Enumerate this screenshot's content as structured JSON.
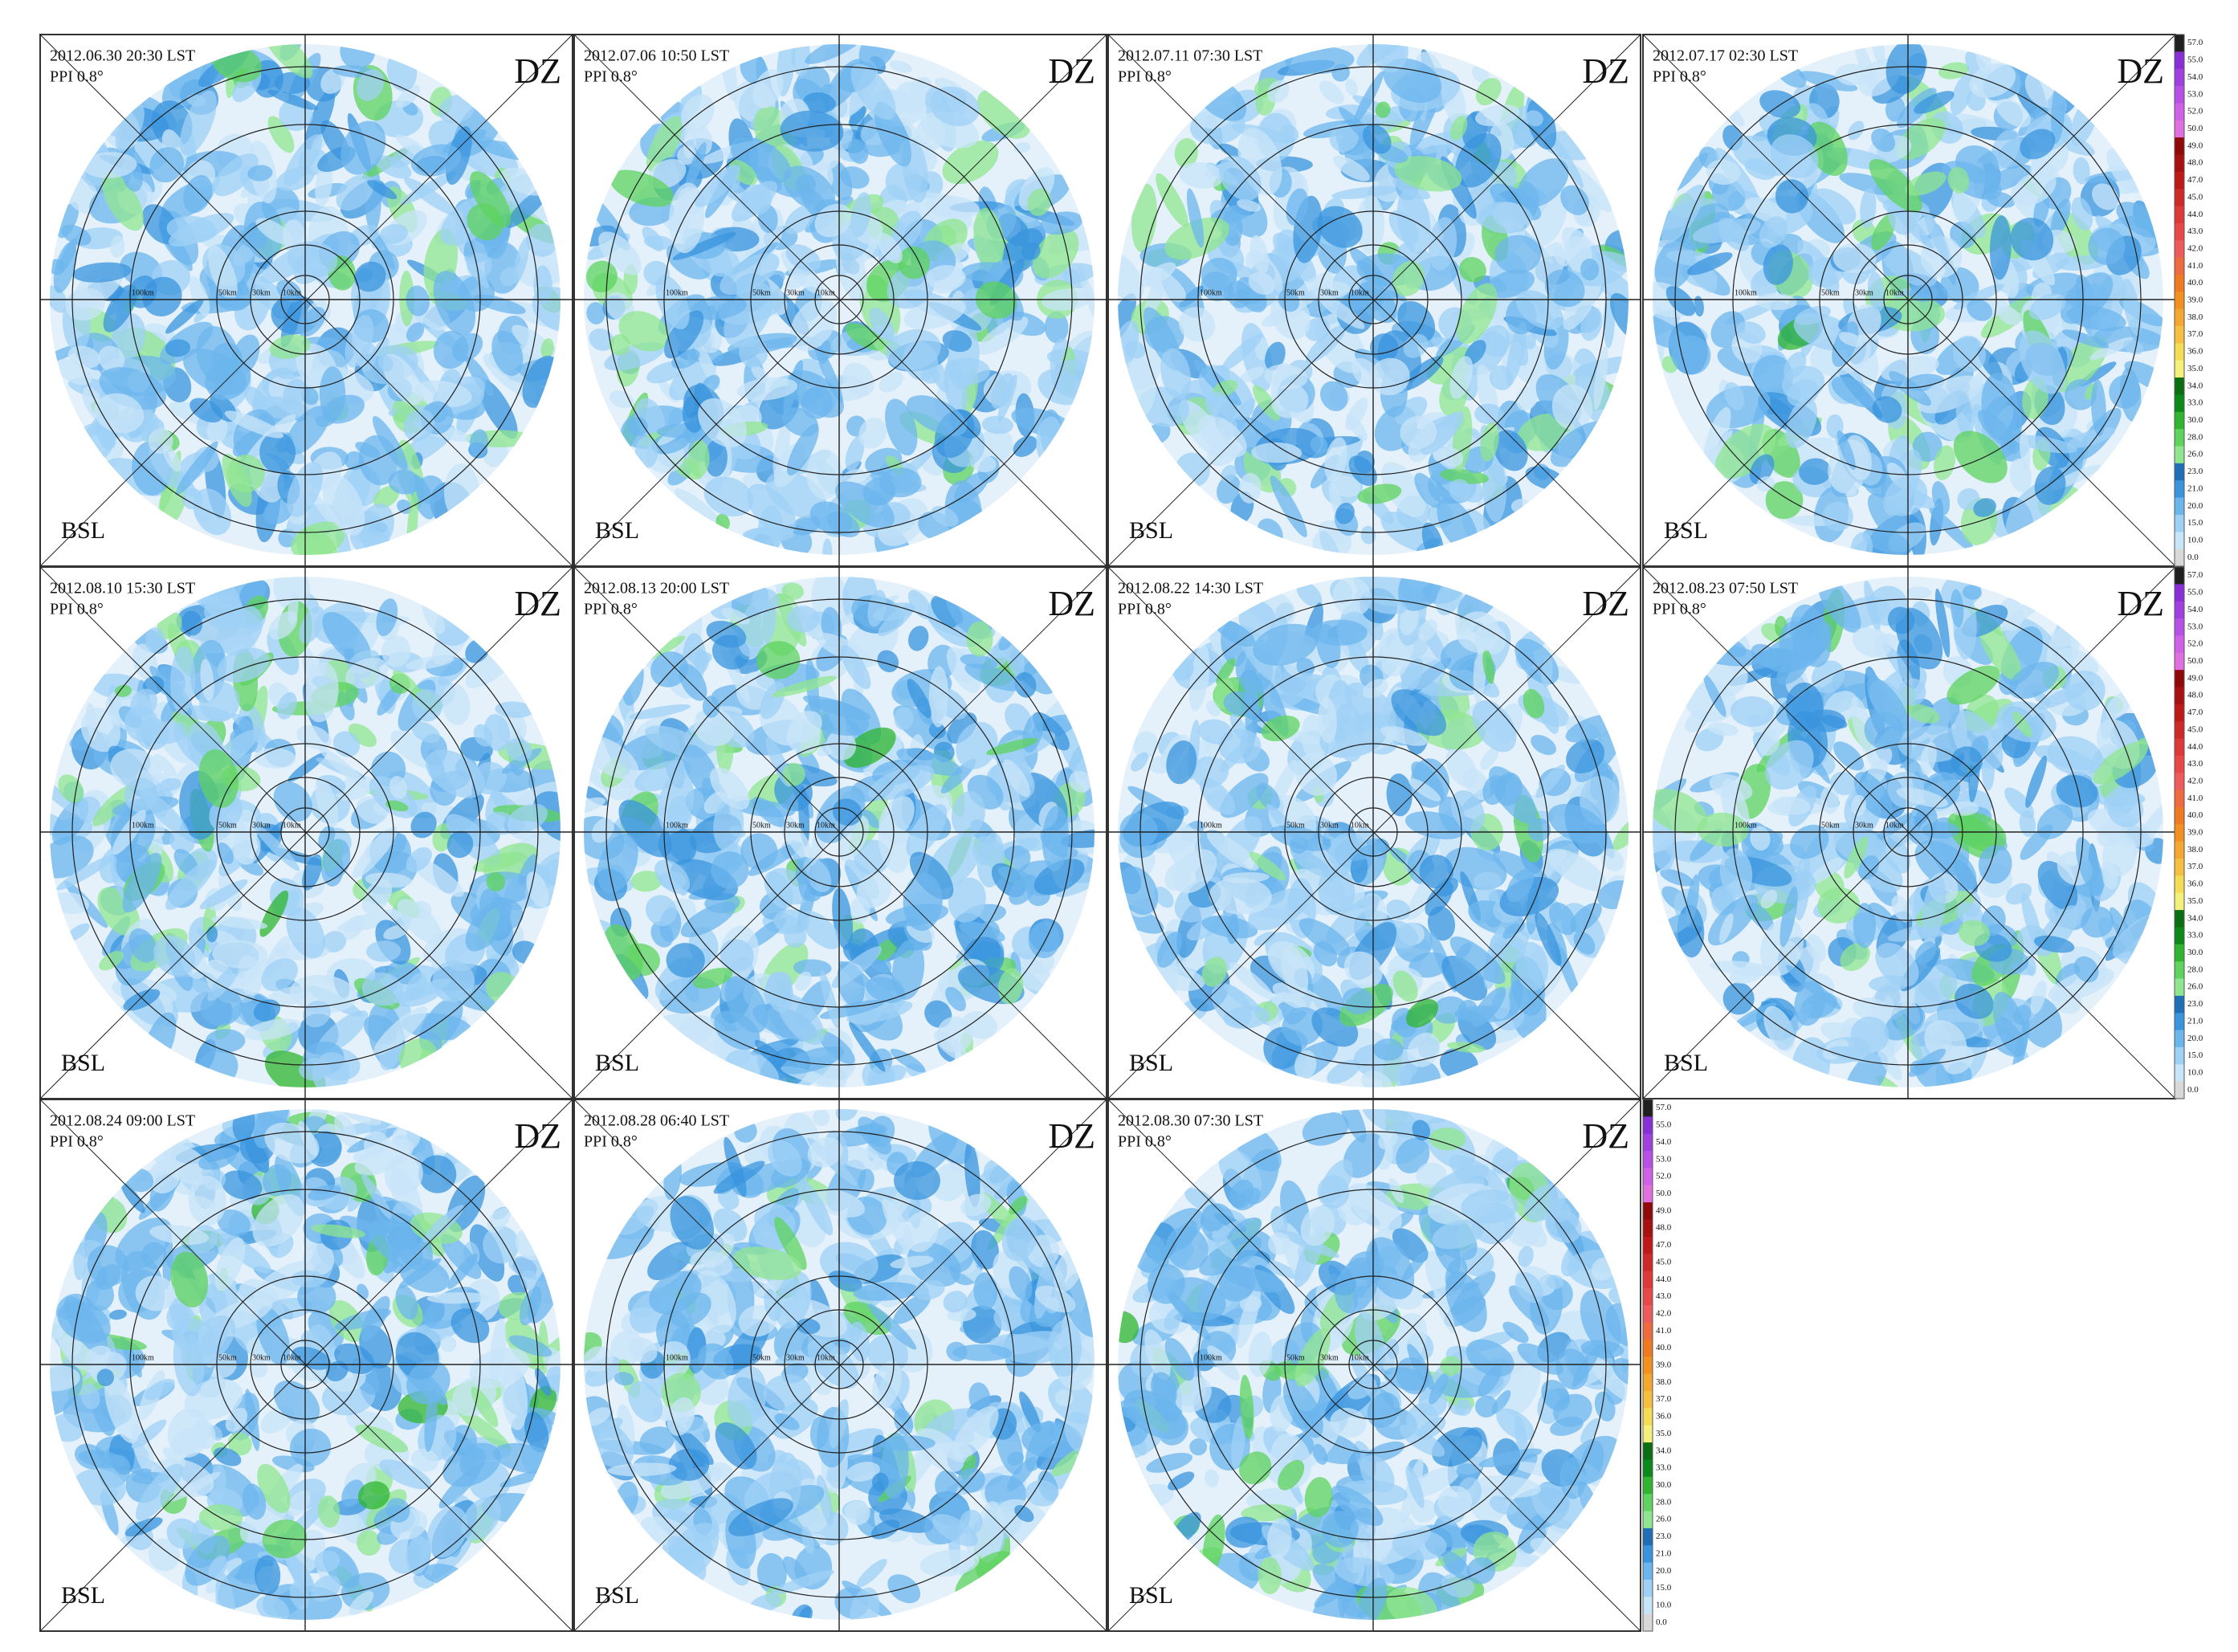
{
  "panels": [
    {
      "timestamp": "2012.06.30 20:30 LST",
      "scan": "PPI 0.8°",
      "field": "DZ",
      "site": "BSL",
      "ranges": [
        "100km",
        "50km",
        "30km",
        "10km"
      ]
    },
    {
      "timestamp": "2012.07.06 10:50 LST",
      "scan": "PPI 0.8°",
      "field": "DZ",
      "site": "BSL",
      "ranges": [
        "100km",
        "50km",
        "30km",
        "10km"
      ]
    },
    {
      "timestamp": "2012.07.11 07:30 LST",
      "scan": "PPI 0.8°",
      "field": "DZ",
      "site": "BSL",
      "ranges": [
        "100km",
        "50km",
        "30km",
        "10km"
      ]
    },
    {
      "timestamp": "2012.07.17 02:30 LST",
      "scan": "PPI 0.8°",
      "field": "DZ",
      "site": "BSL",
      "ranges": [
        "100km",
        "50km",
        "30km",
        "10km"
      ]
    },
    {
      "timestamp": "2012.08.10 15:30 LST",
      "scan": "PPI 0.8°",
      "field": "DZ",
      "site": "BSL",
      "ranges": [
        "100km",
        "50km",
        "30km",
        "10km"
      ]
    },
    {
      "timestamp": "2012.08.13 20:00 LST",
      "scan": "PPI 0.8°",
      "field": "DZ",
      "site": "BSL",
      "ranges": [
        "100km",
        "50km",
        "30km",
        "10km"
      ]
    },
    {
      "timestamp": "2012.08.22 14:30 LST",
      "scan": "PPI 0.8°",
      "field": "DZ",
      "site": "BSL",
      "ranges": [
        "100km",
        "50km",
        "30km",
        "10km"
      ]
    },
    {
      "timestamp": "2012.08.23 07:50 LST",
      "scan": "PPI 0.8°",
      "field": "DZ",
      "site": "BSL",
      "ranges": [
        "100km",
        "50km",
        "30km",
        "10km"
      ]
    },
    {
      "timestamp": "2012.08.24 09:00 LST",
      "scan": "PPI 0.8°",
      "field": "DZ",
      "site": "BSL",
      "ranges": [
        "100km",
        "50km",
        "30km",
        "10km"
      ]
    },
    {
      "timestamp": "2012.08.28 06:40 LST",
      "scan": "PPI 0.8°",
      "field": "DZ",
      "site": "BSL",
      "ranges": [
        "100km",
        "50km",
        "30km",
        "10km"
      ]
    },
    {
      "timestamp": "2012.08.30 07:30 LST",
      "scan": "PPI 0.8°",
      "field": "DZ",
      "site": "BSL",
      "ranges": [
        "100km",
        "50km",
        "30km",
        "10km"
      ]
    }
  ],
  "colorbars": [
    {
      "labels": [
        "57.0",
        "55.0",
        "54.0",
        "53.0",
        "52.0",
        "50.0",
        "49.0",
        "48.0",
        "47.0",
        "45.0",
        "44.0",
        "43.0",
        "42.0",
        "41.0",
        "40.0",
        "39.0",
        "38.0",
        "37.0",
        "36.0",
        "35.0",
        "34.0",
        "33.0",
        "30.0",
        "28.0",
        "26.0",
        "23.0",
        "21.0",
        "20.0",
        "15.0",
        "10.0",
        "0.0"
      ],
      "colors": [
        "#202020",
        "#8830d8",
        "#a040e0",
        "#b850e8",
        "#d060e8",
        "#e070e0",
        "#900808",
        "#a81010",
        "#c01818",
        "#d02828",
        "#e03838",
        "#e84848",
        "#ef5a5a",
        "#f06a40",
        "#f07a20",
        "#f29020",
        "#f5a830",
        "#f5c040",
        "#f5dc55",
        "#f5f07a",
        "#0b6e12",
        "#0a8a1a",
        "#2fb52f",
        "#5ed35e",
        "#90e690",
        "#1f6fb8",
        "#3a94dd",
        "#6cb6ee",
        "#9fd0f5",
        "#c8e4f8",
        "#d8d8d8"
      ]
    },
    {
      "labels": [
        "57.0",
        "55.0",
        "54.0",
        "53.0",
        "52.0",
        "50.0",
        "49.0",
        "48.0",
        "47.0",
        "45.0",
        "44.0",
        "43.0",
        "42.0",
        "41.0",
        "40.0",
        "39.0",
        "38.0",
        "37.0",
        "36.0",
        "35.0",
        "34.0",
        "33.0",
        "30.0",
        "28.0",
        "26.0",
        "23.0",
        "21.0",
        "20.0",
        "15.0",
        "10.0",
        "0.0"
      ],
      "colors": [
        "#202020",
        "#8830d8",
        "#a040e0",
        "#b850e8",
        "#d060e8",
        "#e070e0",
        "#900808",
        "#a81010",
        "#c01818",
        "#d02828",
        "#e03838",
        "#e84848",
        "#ef5a5a",
        "#f06a40",
        "#f07a20",
        "#f29020",
        "#f5a830",
        "#f5c040",
        "#f5dc55",
        "#f5f07a",
        "#0b6e12",
        "#0a8a1a",
        "#2fb52f",
        "#5ed35e",
        "#90e690",
        "#1f6fb8",
        "#3a94dd",
        "#6cb6ee",
        "#9fd0f5",
        "#c8e4f8",
        "#d8d8d8"
      ]
    },
    {
      "labels": [
        "57.0",
        "55.0",
        "54.0",
        "53.0",
        "52.0",
        "50.0",
        "49.0",
        "48.0",
        "47.0",
        "45.0",
        "44.0",
        "43.0",
        "42.0",
        "41.0",
        "40.0",
        "39.0",
        "38.0",
        "37.0",
        "36.0",
        "35.0",
        "34.0",
        "33.0",
        "30.0",
        "28.0",
        "26.0",
        "23.0",
        "21.0",
        "20.0",
        "15.0",
        "10.0",
        "0.0"
      ],
      "colors": [
        "#202020",
        "#8830d8",
        "#a040e0",
        "#b850e8",
        "#d060e8",
        "#e070e0",
        "#900808",
        "#a81010",
        "#c01818",
        "#d02828",
        "#e03838",
        "#e84848",
        "#ef5a5a",
        "#f06a40",
        "#f07a20",
        "#f29020",
        "#f5a830",
        "#f5c040",
        "#f5dc55",
        "#f5f07a",
        "#0b6e12",
        "#0a8a1a",
        "#2fb52f",
        "#5ed35e",
        "#90e690",
        "#1f6fb8",
        "#3a94dd",
        "#6cb6ee",
        "#9fd0f5",
        "#c8e4f8",
        "#d8d8d8"
      ]
    }
  ]
}
